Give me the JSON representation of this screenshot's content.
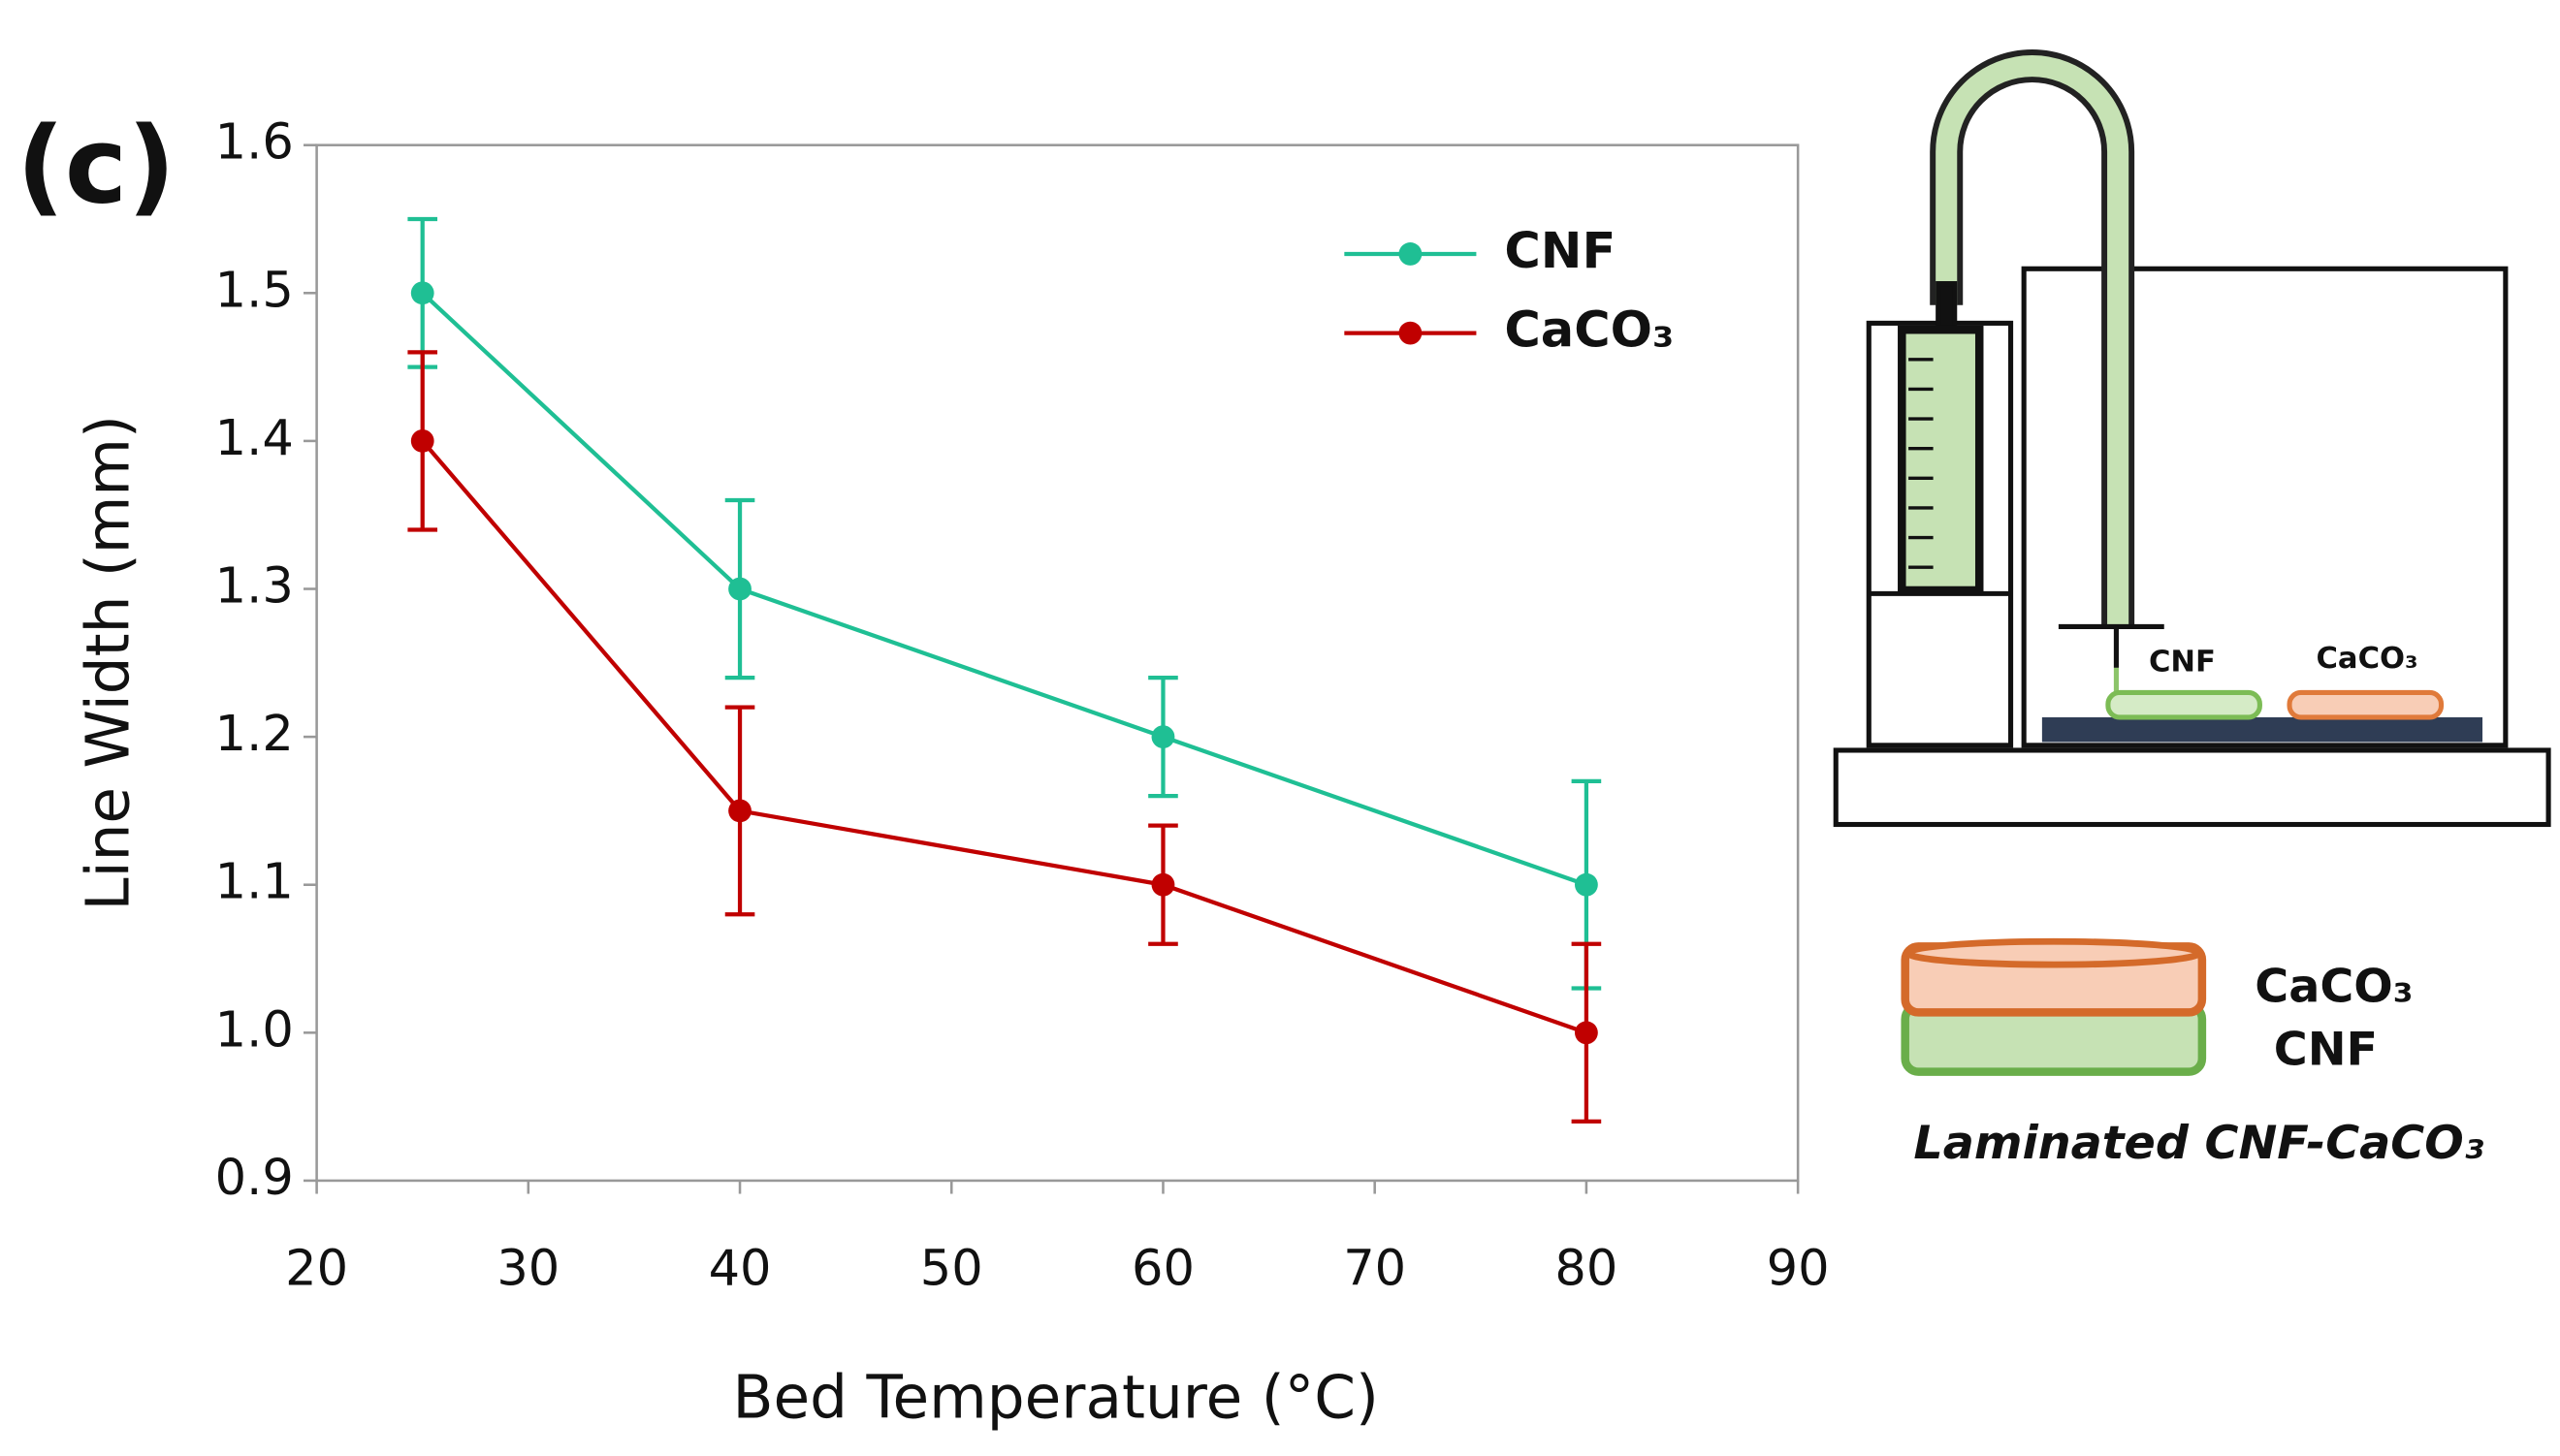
{
  "chart_data": {
    "type": "line",
    "panel_label": "(c)",
    "xlabel": "Bed Temperature (°C)",
    "ylabel": "Line Width (mm)",
    "x": [
      25,
      40,
      60,
      80
    ],
    "series": [
      {
        "name": "CNF",
        "color": "#1fbf94",
        "values": [
          1.5,
          1.3,
          1.2,
          1.1
        ],
        "errors": [
          0.05,
          0.06,
          0.04,
          0.07
        ]
      },
      {
        "name": "CaCO₃",
        "color": "#c00000",
        "values": [
          1.4,
          1.15,
          1.1,
          1.0
        ],
        "errors": [
          0.06,
          0.07,
          0.04,
          0.06
        ]
      }
    ],
    "xlim": [
      20,
      90
    ],
    "xticks": [
      20,
      30,
      40,
      50,
      60,
      70,
      80,
      90
    ],
    "ylim": [
      0.9,
      1.6
    ],
    "yticks": [
      0.9,
      {
        "value": 1.0,
        "label": "1.0"
      },
      1.1,
      1.2,
      1.3,
      1.4,
      1.5,
      1.6
    ],
    "grid": false,
    "legend": "upper right"
  },
  "diagram": {
    "labels": [
      "CNF",
      "CaCO₃",
      "CaCO₃",
      "CNF",
      "Laminated CNF-CaCO₃"
    ]
  }
}
